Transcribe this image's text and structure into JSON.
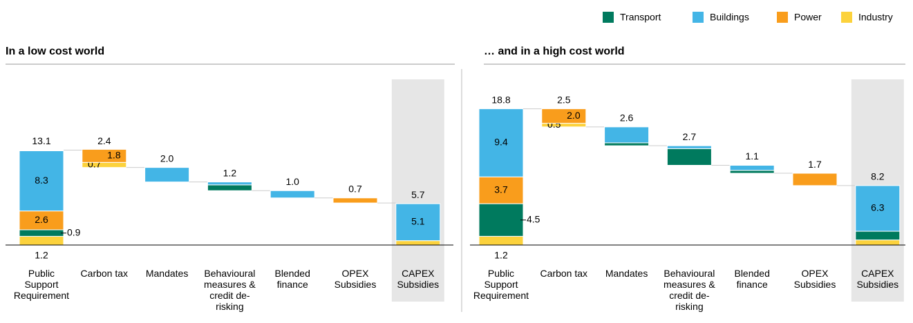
{
  "chart_data": [
    {
      "type": "waterfall",
      "title": "In a low cost world",
      "categories": [
        "Public Support Requirement",
        "Carbon tax",
        "Mandates",
        "Behavioural measures & credit de-risking",
        "Blended finance",
        "OPEX Subsidies",
        "CAPEX Subsidies"
      ],
      "totals": [
        13.1,
        2.4,
        2.0,
        1.2,
        1.0,
        0.7,
        5.7
      ],
      "total_labels": [
        "13.1",
        "2.4",
        "2.0",
        "1.2",
        "1.0",
        "0.7",
        "5.7"
      ],
      "series": [
        {
          "name": "Transport",
          "color": "#007a5e",
          "values": [
            0.9,
            null,
            null,
            0.8,
            null,
            null,
            null
          ],
          "value_labels": [
            "0.9",
            null,
            null,
            null,
            null,
            null,
            null
          ]
        },
        {
          "name": "Buildings",
          "color": "#43b5e6",
          "values": [
            8.3,
            null,
            2.0,
            0.4,
            1.0,
            null,
            5.1
          ],
          "value_labels": [
            "8.3",
            null,
            null,
            null,
            null,
            null,
            "5.1"
          ]
        },
        {
          "name": "Power",
          "color": "#f99d1c",
          "values": [
            2.6,
            1.8,
            null,
            null,
            null,
            0.7,
            null
          ],
          "value_labels": [
            "2.6",
            "1.8",
            null,
            null,
            null,
            null,
            null
          ]
        },
        {
          "name": "Industry",
          "color": "#fcd23c",
          "values": [
            1.2,
            0.7,
            null,
            null,
            null,
            null,
            0.6
          ],
          "value_labels": [
            "1.2",
            "0.7",
            null,
            null,
            null,
            null,
            null
          ]
        }
      ],
      "ylim": [
        0,
        20
      ],
      "legend": "top-right"
    },
    {
      "type": "waterfall",
      "title": "… and in a high cost world",
      "categories": [
        "Public Support Requirement",
        "Carbon tax",
        "Mandates",
        "Behavioural measures & credit de-risking",
        "Blended finance",
        "OPEX Subsidies",
        "CAPEX Subsidies"
      ],
      "totals": [
        18.8,
        2.5,
        2.6,
        2.7,
        1.1,
        1.7,
        8.2
      ],
      "total_labels": [
        "18.8",
        "2.5",
        "2.6",
        "2.7",
        "1.1",
        "1.7",
        "8.2"
      ],
      "series": [
        {
          "name": "Transport",
          "color": "#007a5e",
          "values": [
            4.5,
            null,
            0.4,
            2.3,
            0.4,
            null,
            1.2
          ],
          "value_labels": [
            "4.5",
            null,
            null,
            null,
            null,
            null,
            null
          ]
        },
        {
          "name": "Buildings",
          "color": "#43b5e6",
          "values": [
            9.4,
            null,
            2.2,
            0.4,
            0.7,
            null,
            6.3
          ],
          "value_labels": [
            "9.4",
            null,
            null,
            null,
            null,
            null,
            "6.3"
          ]
        },
        {
          "name": "Power",
          "color": "#f99d1c",
          "values": [
            3.7,
            2.0,
            null,
            null,
            null,
            1.7,
            null
          ],
          "value_labels": [
            "3.7",
            "2.0",
            null,
            null,
            null,
            null,
            null
          ]
        },
        {
          "name": "Industry",
          "color": "#fcd23c",
          "values": [
            1.2,
            0.5,
            null,
            null,
            null,
            null,
            0.7
          ],
          "value_labels": [
            "1.2",
            "0.5",
            null,
            null,
            null,
            null,
            null
          ]
        }
      ],
      "ylim": [
        0,
        20
      ]
    }
  ]
}
